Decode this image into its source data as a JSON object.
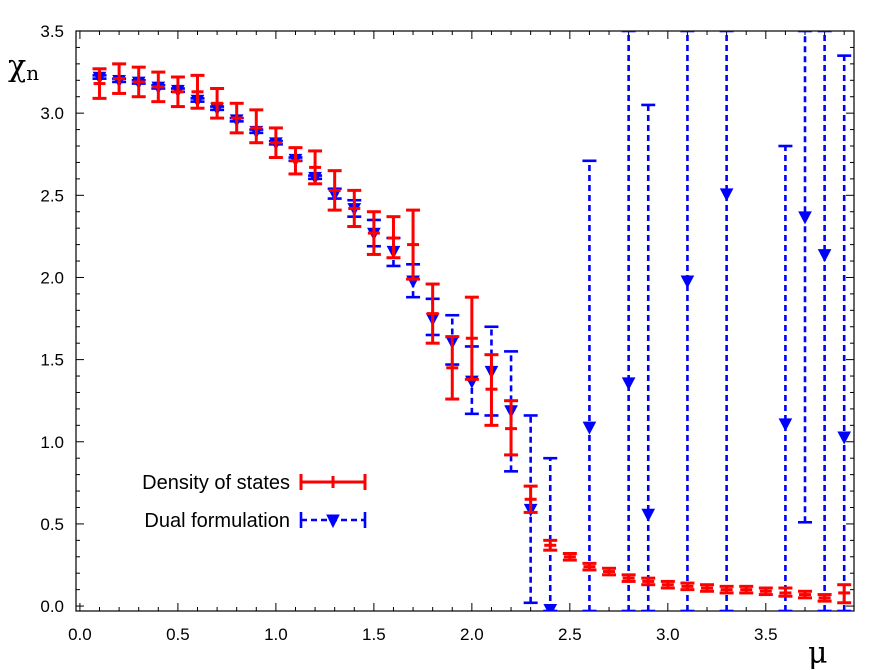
{
  "chart_data": {
    "type": "scatter",
    "xlabel": "μ",
    "ylabel_main": "χ",
    "ylabel_sub": "n",
    "xlim": [
      -0.02,
      3.95
    ],
    "ylim": [
      -0.03,
      3.5
    ],
    "x_ticks": [
      0.0,
      0.5,
      1.0,
      1.5,
      2.0,
      2.5,
      3.0,
      3.5
    ],
    "x_tick_labels": [
      "0.0",
      "0.5",
      "1.0",
      "1.5",
      "2.0",
      "2.5",
      "3.0",
      "3.5"
    ],
    "y_ticks": [
      0.0,
      0.5,
      1.0,
      1.5,
      2.0,
      2.5,
      3.0,
      3.5
    ],
    "y_tick_labels": [
      "0.0",
      "0.5",
      "1.0",
      "1.5",
      "2.0",
      "2.5",
      "3.0",
      "3.5"
    ],
    "legend_position": "bottom-left",
    "series": [
      {
        "name": "Density of states",
        "color": "#ff0000",
        "line_style": "solid",
        "marker": "plus-errorbar",
        "points": [
          {
            "x": 0.1,
            "y": 3.18,
            "lo": 3.09,
            "hi": 3.27
          },
          {
            "x": 0.2,
            "y": 3.21,
            "lo": 3.12,
            "hi": 3.3
          },
          {
            "x": 0.3,
            "y": 3.19,
            "lo": 3.1,
            "hi": 3.28
          },
          {
            "x": 0.4,
            "y": 3.16,
            "lo": 3.07,
            "hi": 3.25
          },
          {
            "x": 0.5,
            "y": 3.13,
            "lo": 3.04,
            "hi": 3.22
          },
          {
            "x": 0.6,
            "y": 3.13,
            "lo": 3.03,
            "hi": 3.23
          },
          {
            "x": 0.7,
            "y": 3.06,
            "lo": 2.97,
            "hi": 3.15
          },
          {
            "x": 0.8,
            "y": 2.97,
            "lo": 2.88,
            "hi": 3.06
          },
          {
            "x": 0.9,
            "y": 2.91,
            "lo": 2.82,
            "hi": 3.02
          },
          {
            "x": 1.0,
            "y": 2.82,
            "lo": 2.73,
            "hi": 2.91
          },
          {
            "x": 1.1,
            "y": 2.71,
            "lo": 2.63,
            "hi": 2.79
          },
          {
            "x": 1.2,
            "y": 2.67,
            "lo": 2.57,
            "hi": 2.77
          },
          {
            "x": 1.3,
            "y": 2.53,
            "lo": 2.41,
            "hi": 2.65
          },
          {
            "x": 1.4,
            "y": 2.42,
            "lo": 2.31,
            "hi": 2.53
          },
          {
            "x": 1.5,
            "y": 2.27,
            "lo": 2.14,
            "hi": 2.4
          },
          {
            "x": 1.6,
            "y": 2.24,
            "lo": 2.12,
            "hi": 2.37
          },
          {
            "x": 1.7,
            "y": 2.2,
            "lo": 1.99,
            "hi": 2.41
          },
          {
            "x": 1.8,
            "y": 1.78,
            "lo": 1.6,
            "hi": 1.96
          },
          {
            "x": 1.9,
            "y": 1.45,
            "lo": 1.26,
            "hi": 1.64
          },
          {
            "x": 2.0,
            "y": 1.63,
            "lo": 1.38,
            "hi": 1.88
          },
          {
            "x": 2.1,
            "y": 1.32,
            "lo": 1.1,
            "hi": 1.53
          },
          {
            "x": 2.2,
            "y": 1.08,
            "lo": 0.92,
            "hi": 1.25
          },
          {
            "x": 2.3,
            "y": 0.65,
            "lo": 0.57,
            "hi": 0.73
          },
          {
            "x": 2.4,
            "y": 0.37,
            "lo": 0.34,
            "hi": 0.4
          },
          {
            "x": 2.5,
            "y": 0.3,
            "lo": 0.28,
            "hi": 0.32
          },
          {
            "x": 2.6,
            "y": 0.24,
            "lo": 0.22,
            "hi": 0.26
          },
          {
            "x": 2.7,
            "y": 0.21,
            "lo": 0.19,
            "hi": 0.23
          },
          {
            "x": 2.8,
            "y": 0.17,
            "lo": 0.15,
            "hi": 0.19
          },
          {
            "x": 2.9,
            "y": 0.15,
            "lo": 0.13,
            "hi": 0.17
          },
          {
            "x": 3.0,
            "y": 0.13,
            "lo": 0.11,
            "hi": 0.15
          },
          {
            "x": 3.1,
            "y": 0.12,
            "lo": 0.1,
            "hi": 0.14
          },
          {
            "x": 3.2,
            "y": 0.11,
            "lo": 0.09,
            "hi": 0.13
          },
          {
            "x": 3.3,
            "y": 0.1,
            "lo": 0.08,
            "hi": 0.12
          },
          {
            "x": 3.4,
            "y": 0.1,
            "lo": 0.08,
            "hi": 0.12
          },
          {
            "x": 3.5,
            "y": 0.09,
            "lo": 0.07,
            "hi": 0.11
          },
          {
            "x": 3.6,
            "y": 0.08,
            "lo": 0.06,
            "hi": 0.11
          },
          {
            "x": 3.7,
            "y": 0.07,
            "lo": 0.05,
            "hi": 0.09
          },
          {
            "x": 3.8,
            "y": 0.05,
            "lo": 0.03,
            "hi": 0.07
          },
          {
            "x": 3.9,
            "y": 0.08,
            "lo": 0.02,
            "hi": 0.13
          }
        ]
      },
      {
        "name": "Dual formulation",
        "color": "#0000ff",
        "line_style": "dashed",
        "marker": "triangle-down",
        "points": [
          {
            "x": 0.1,
            "y": 3.22,
            "lo": 3.21,
            "hi": 3.23
          },
          {
            "x": 0.2,
            "y": 3.2,
            "lo": 3.19,
            "hi": 3.21
          },
          {
            "x": 0.3,
            "y": 3.19,
            "lo": 3.18,
            "hi": 3.2
          },
          {
            "x": 0.4,
            "y": 3.16,
            "lo": 3.15,
            "hi": 3.17
          },
          {
            "x": 0.5,
            "y": 3.14,
            "lo": 3.13,
            "hi": 3.15
          },
          {
            "x": 0.6,
            "y": 3.08,
            "lo": 3.07,
            "hi": 3.09
          },
          {
            "x": 0.7,
            "y": 3.03,
            "lo": 3.02,
            "hi": 3.04
          },
          {
            "x": 0.8,
            "y": 2.96,
            "lo": 2.95,
            "hi": 2.97
          },
          {
            "x": 0.9,
            "y": 2.89,
            "lo": 2.88,
            "hi": 2.9
          },
          {
            "x": 1.0,
            "y": 2.82,
            "lo": 2.81,
            "hi": 2.83
          },
          {
            "x": 1.1,
            "y": 2.72,
            "lo": 2.71,
            "hi": 2.73
          },
          {
            "x": 1.2,
            "y": 2.61,
            "lo": 2.6,
            "hi": 2.62
          },
          {
            "x": 1.3,
            "y": 2.51,
            "lo": 2.48,
            "hi": 2.54
          },
          {
            "x": 1.4,
            "y": 2.42,
            "lo": 2.37,
            "hi": 2.47
          },
          {
            "x": 1.5,
            "y": 2.27,
            "lo": 2.19,
            "hi": 2.35
          },
          {
            "x": 1.6,
            "y": 2.16,
            "lo": 2.07,
            "hi": 2.24
          },
          {
            "x": 1.7,
            "y": 1.98,
            "lo": 1.88,
            "hi": 2.08
          },
          {
            "x": 1.8,
            "y": 1.75,
            "lo": 1.65,
            "hi": 1.87
          },
          {
            "x": 1.9,
            "y": 1.61,
            "lo": 1.47,
            "hi": 1.77
          },
          {
            "x": 2.0,
            "y": 1.37,
            "lo": 1.17,
            "hi": 1.58
          },
          {
            "x": 2.1,
            "y": 1.43,
            "lo": 1.16,
            "hi": 1.7
          },
          {
            "x": 2.2,
            "y": 1.19,
            "lo": 0.82,
            "hi": 1.55
          },
          {
            "x": 2.3,
            "y": 0.59,
            "lo": 0.02,
            "hi": 1.16
          },
          {
            "x": 2.4,
            "y": -0.02,
            "lo": -0.03,
            "hi": 0.9
          },
          {
            "x": 2.6,
            "y": 1.09,
            "lo": -0.03,
            "hi": 2.71
          },
          {
            "x": 2.8,
            "y": 1.36,
            "lo": -0.03,
            "hi": 3.5
          },
          {
            "x": 2.9,
            "y": 0.56,
            "lo": -0.03,
            "hi": 3.05
          },
          {
            "x": 3.1,
            "y": 1.98,
            "lo": -0.03,
            "hi": 3.5
          },
          {
            "x": 3.3,
            "y": 2.51,
            "lo": -0.03,
            "hi": 3.5
          },
          {
            "x": 3.6,
            "y": 1.11,
            "lo": -0.03,
            "hi": 2.8
          },
          {
            "x": 3.7,
            "y": 2.37,
            "lo": 0.51,
            "hi": 3.5
          },
          {
            "x": 3.8,
            "y": 2.14,
            "lo": -0.03,
            "hi": 3.5
          },
          {
            "x": 3.9,
            "y": 1.03,
            "lo": -0.03,
            "hi": 3.35
          }
        ]
      }
    ]
  }
}
